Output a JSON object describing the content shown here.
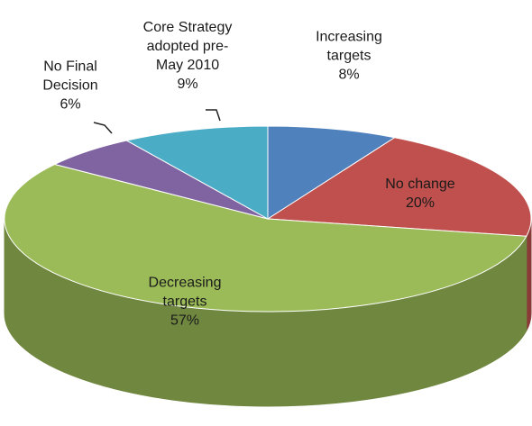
{
  "chart_data": {
    "type": "pie3d",
    "categories": [
      "Increasing targets",
      "No change",
      "Decreasing targets",
      "No Final Decision",
      "Core Strategy adopted pre-May 2010"
    ],
    "values": [
      8,
      20,
      57,
      6,
      9
    ],
    "value_labels": [
      "8%",
      "20%",
      "57%",
      "6%",
      "9%"
    ],
    "colors": [
      "#4f81bd",
      "#c0504d",
      "#9bbb59",
      "#8064a2",
      "#4bacc6"
    ]
  }
}
